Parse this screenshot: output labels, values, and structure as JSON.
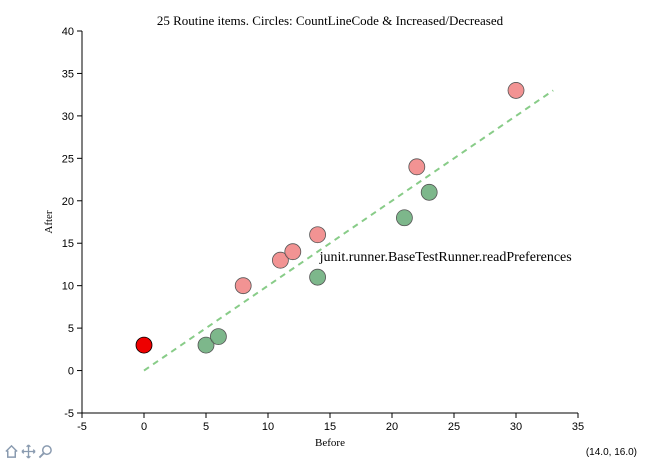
{
  "chart_data": {
    "type": "scatter",
    "title": "25 Routine items. Circles: CountLineCode & Increased/Decreased",
    "xlabel": "Before",
    "ylabel": "After",
    "xlim": [
      -5,
      35
    ],
    "ylim": [
      -5,
      40
    ],
    "xticks": [
      "-5",
      "0",
      "5",
      "10",
      "15",
      "20",
      "25",
      "30",
      "35"
    ],
    "yticks": [
      "-5",
      "0",
      "5",
      "10",
      "15",
      "20",
      "25",
      "30",
      "35",
      "40"
    ],
    "grid": false,
    "series": [
      {
        "status": "increased",
        "color": "#f08080",
        "points": [
          [
            8,
            10
          ],
          [
            11,
            13
          ],
          [
            12,
            14
          ],
          [
            14,
            16
          ],
          [
            22,
            24
          ],
          [
            30,
            33
          ]
        ]
      },
      {
        "status": "decreased",
        "color": "#66aa77",
        "points": [
          [
            5,
            3
          ],
          [
            6,
            4
          ],
          [
            14,
            11
          ],
          [
            21,
            18
          ],
          [
            23,
            21
          ]
        ]
      },
      {
        "status": "highlighted",
        "color": "#ee0000",
        "points": [
          [
            0,
            3
          ]
        ]
      }
    ],
    "reference_line": {
      "style": "dashed",
      "color": "#88cc88",
      "from": [
        0,
        0
      ],
      "to": [
        33,
        33
      ]
    },
    "annotation": {
      "text": "junit.runner.BaseTestRunner.readPreferences",
      "x": 14,
      "y": 13.5
    }
  },
  "toolbar": {
    "icons": [
      "home-icon",
      "pan-icon",
      "zoom-icon"
    ]
  },
  "coordinate_readout": "(14.0, 16.0)"
}
